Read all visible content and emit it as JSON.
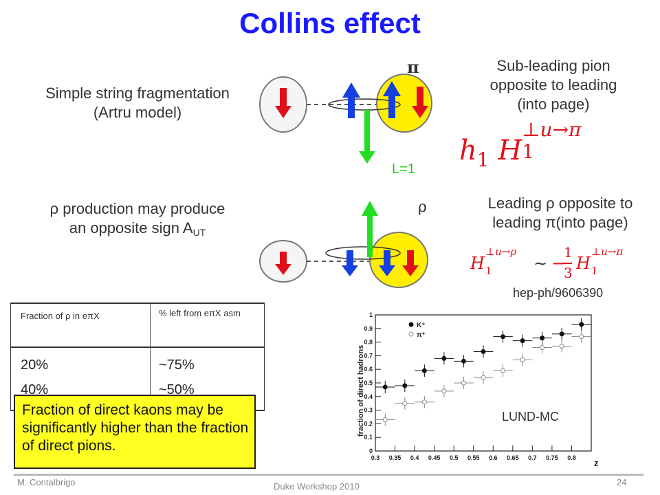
{
  "title": "Collins effect",
  "upper": {
    "left_text": [
      "Simple string fragmentation",
      "(Artru model)"
    ],
    "pi_symbol": "π",
    "l_label": "L=1",
    "right_text": [
      "Sub-leading pion",
      "opposite to leading",
      "(into page)"
    ],
    "formula": {
      "a": "h",
      "a_sub": "1",
      "b": "H",
      "b_sub": "1",
      "b_sup": "⊥u→π"
    }
  },
  "lower": {
    "left_line1": "ρ production may produce",
    "left_line2_prefix": "an opposite sign A",
    "left_line2_sub": "UT",
    "rho_symbol": "ρ",
    "right_text": [
      "Leading ρ opposite to",
      "leading π(into page)"
    ],
    "formula": {
      "lhs": "H",
      "lhs_sub": "1",
      "lhs_sup": "⊥u→ρ",
      "rel": "∼",
      "sign": "−",
      "num": "1",
      "den": "3",
      "rhs": "H",
      "rhs_sub": "1",
      "rhs_sup": "⊥u→π"
    },
    "reference": "hep-ph/9606390"
  },
  "table": {
    "headers": [
      "Fraction of ρ in eπX",
      "% left from eπX asm"
    ],
    "rows": [
      [
        "20%",
        "~75%"
      ],
      [
        "40%",
        "~50%"
      ]
    ]
  },
  "note": "Fraction of direct kaons may be significantly higher than the fraction of direct pions.",
  "plot_label": "LUND-MC",
  "chart_data": {
    "type": "scatter",
    "xlabel": "z",
    "ylabel": "fraction of direct hadrons",
    "xlim": [
      0.3,
      0.85
    ],
    "ylim": [
      0,
      1
    ],
    "xticks": [
      "0.3",
      "0.35",
      "0.4",
      "0.45",
      "0.5",
      "0.55",
      "0.6",
      "0.65",
      "0.7",
      "0.75",
      "0.8"
    ],
    "yticks": [
      "0",
      "0.1",
      "0.2",
      "0.3",
      "0.4",
      "0.5",
      "0.6",
      "0.7",
      "0.8",
      "0.9",
      "1"
    ],
    "legend": [
      "K⁺",
      "π⁺"
    ],
    "legend_position": "top-left",
    "series": [
      {
        "name": "K⁺",
        "marker": "filled-circle",
        "x": [
          0.325,
          0.375,
          0.425,
          0.475,
          0.525,
          0.575,
          0.625,
          0.675,
          0.725,
          0.775,
          0.825
        ],
        "y": [
          0.47,
          0.48,
          0.59,
          0.68,
          0.66,
          0.73,
          0.84,
          0.81,
          0.83,
          0.86,
          0.93
        ]
      },
      {
        "name": "π⁺",
        "marker": "open-circle",
        "x": [
          0.325,
          0.375,
          0.425,
          0.475,
          0.525,
          0.575,
          0.625,
          0.675,
          0.725,
          0.775,
          0.825
        ],
        "y": [
          0.23,
          0.35,
          0.36,
          0.44,
          0.5,
          0.54,
          0.59,
          0.67,
          0.76,
          0.77,
          0.84
        ]
      }
    ]
  },
  "footer": {
    "author": "M. Contalbrigo",
    "event": "Duke Workshop 2010",
    "page": "24"
  },
  "colors": {
    "title": "#1a1aff",
    "arrow_red": "#e0101a",
    "arrow_blue": "#1440e0",
    "arrow_green": "#22dd22",
    "blob_yellow": "#ffee00",
    "note_bg": "#ffff22",
    "formula_red": "#e0101a"
  }
}
